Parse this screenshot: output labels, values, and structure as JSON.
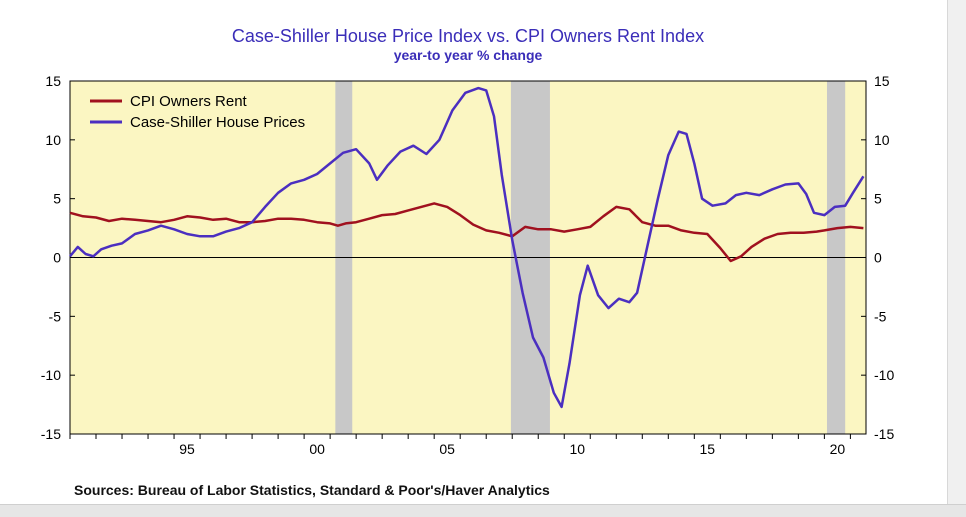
{
  "title": "Case-Shiller House Price Index vs. CPI Owners Rent Index",
  "subtitle": "year-to year % change",
  "source": "Sources:  Bureau of Labor Statistics, Standard & Poor's/Haver Analytics",
  "colors": {
    "plot_background": "#fbf6c2",
    "recession": "#c8c8c8",
    "cpi_owners_rent": "#a0111f",
    "case_shiller": "#4b2fc0"
  },
  "chart_data": {
    "type": "line",
    "xlim": [
      1991.0,
      2021.6
    ],
    "ylim": [
      -15,
      15
    ],
    "y_ticks": [
      "15",
      "10",
      "5",
      "0",
      "-5",
      "-10",
      "-15"
    ],
    "y_tick_values": [
      15,
      10,
      5,
      0,
      -5,
      -10,
      -15
    ],
    "x_ticks": [
      "95",
      "00",
      "05",
      "10",
      "15",
      "20"
    ],
    "x_tick_values": [
      1995.5,
      2000.5,
      2005.5,
      2010.5,
      2015.5,
      2020.5
    ],
    "zero_line": true,
    "legend_position": "top-left",
    "recessions": [
      [
        2001.2,
        2001.85
      ],
      [
        2007.95,
        2009.45
      ],
      [
        2020.1,
        2020.8
      ]
    ],
    "series": [
      {
        "name": "CPI Owners Rent",
        "points": [
          [
            1991.0,
            3.8
          ],
          [
            1991.5,
            3.5
          ],
          [
            1992.0,
            3.4
          ],
          [
            1992.5,
            3.1
          ],
          [
            1993.0,
            3.3
          ],
          [
            1993.5,
            3.2
          ],
          [
            1994.0,
            3.1
          ],
          [
            1994.5,
            3.0
          ],
          [
            1995.0,
            3.2
          ],
          [
            1995.5,
            3.5
          ],
          [
            1996.0,
            3.4
          ],
          [
            1996.5,
            3.2
          ],
          [
            1997.0,
            3.3
          ],
          [
            1997.5,
            3.0
          ],
          [
            1998.0,
            3.0
          ],
          [
            1998.5,
            3.1
          ],
          [
            1999.0,
            3.3
          ],
          [
            1999.5,
            3.3
          ],
          [
            2000.0,
            3.2
          ],
          [
            2000.5,
            3.0
          ],
          [
            2001.0,
            2.9
          ],
          [
            2001.3,
            2.7
          ],
          [
            2001.6,
            2.9
          ],
          [
            2002.0,
            3.0
          ],
          [
            2002.5,
            3.3
          ],
          [
            2003.0,
            3.6
          ],
          [
            2003.5,
            3.7
          ],
          [
            2004.0,
            4.0
          ],
          [
            2004.5,
            4.3
          ],
          [
            2005.0,
            4.6
          ],
          [
            2005.5,
            4.3
          ],
          [
            2006.0,
            3.6
          ],
          [
            2006.5,
            2.8
          ],
          [
            2007.0,
            2.3
          ],
          [
            2007.5,
            2.1
          ],
          [
            2008.0,
            1.8
          ],
          [
            2008.5,
            2.6
          ],
          [
            2009.0,
            2.4
          ],
          [
            2009.5,
            2.4
          ],
          [
            2010.0,
            2.2
          ],
          [
            2010.5,
            2.4
          ],
          [
            2011.0,
            2.6
          ],
          [
            2011.5,
            3.5
          ],
          [
            2012.0,
            4.3
          ],
          [
            2012.5,
            4.1
          ],
          [
            2013.0,
            3.0
          ],
          [
            2013.5,
            2.7
          ],
          [
            2014.0,
            2.7
          ],
          [
            2014.5,
            2.3
          ],
          [
            2015.0,
            2.1
          ],
          [
            2015.5,
            2.0
          ],
          [
            2016.0,
            0.8
          ],
          [
            2016.4,
            -0.3
          ],
          [
            2016.8,
            0.1
          ],
          [
            2017.2,
            0.9
          ],
          [
            2017.7,
            1.6
          ],
          [
            2018.2,
            2.0
          ],
          [
            2018.7,
            2.1
          ],
          [
            2019.2,
            2.1
          ],
          [
            2019.7,
            2.2
          ],
          [
            2020.0,
            2.3
          ],
          [
            2020.5,
            2.5
          ],
          [
            2021.0,
            2.6
          ],
          [
            2021.5,
            2.5
          ]
        ]
      },
      {
        "name": "Case-Shiller House Prices",
        "points": [
          [
            1991.0,
            0.1
          ],
          [
            1991.3,
            0.9
          ],
          [
            1991.6,
            0.3
          ],
          [
            1991.9,
            0.1
          ],
          [
            1992.2,
            0.7
          ],
          [
            1992.6,
            1.0
          ],
          [
            1993.0,
            1.2
          ],
          [
            1993.5,
            2.0
          ],
          [
            1994.0,
            2.3
          ],
          [
            1994.5,
            2.7
          ],
          [
            1995.0,
            2.4
          ],
          [
            1995.5,
            2.0
          ],
          [
            1996.0,
            1.8
          ],
          [
            1996.5,
            1.8
          ],
          [
            1997.0,
            2.2
          ],
          [
            1997.5,
            2.5
          ],
          [
            1998.0,
            3.0
          ],
          [
            1998.5,
            4.3
          ],
          [
            1999.0,
            5.5
          ],
          [
            1999.5,
            6.3
          ],
          [
            2000.0,
            6.6
          ],
          [
            2000.5,
            7.1
          ],
          [
            2001.0,
            8.0
          ],
          [
            2001.5,
            8.9
          ],
          [
            2002.0,
            9.2
          ],
          [
            2002.5,
            8.0
          ],
          [
            2002.8,
            6.6
          ],
          [
            2003.2,
            7.8
          ],
          [
            2003.7,
            9.0
          ],
          [
            2004.2,
            9.5
          ],
          [
            2004.7,
            8.8
          ],
          [
            2005.2,
            10.0
          ],
          [
            2005.7,
            12.5
          ],
          [
            2006.2,
            14.0
          ],
          [
            2006.7,
            14.4
          ],
          [
            2007.0,
            14.2
          ],
          [
            2007.3,
            12.0
          ],
          [
            2007.6,
            7.0
          ],
          [
            2008.0,
            1.5
          ],
          [
            2008.4,
            -3.0
          ],
          [
            2008.8,
            -6.8
          ],
          [
            2009.2,
            -8.5
          ],
          [
            2009.6,
            -11.5
          ],
          [
            2009.9,
            -12.7
          ],
          [
            2010.2,
            -9.0
          ],
          [
            2010.6,
            -3.2
          ],
          [
            2010.9,
            -0.7
          ],
          [
            2011.3,
            -3.2
          ],
          [
            2011.7,
            -4.3
          ],
          [
            2012.1,
            -3.5
          ],
          [
            2012.5,
            -3.8
          ],
          [
            2012.8,
            -3.0
          ],
          [
            2013.2,
            1.0
          ],
          [
            2013.6,
            5.0
          ],
          [
            2014.0,
            8.7
          ],
          [
            2014.4,
            10.7
          ],
          [
            2014.7,
            10.5
          ],
          [
            2015.0,
            8.0
          ],
          [
            2015.3,
            5.0
          ],
          [
            2015.7,
            4.4
          ],
          [
            2016.2,
            4.6
          ],
          [
            2016.6,
            5.3
          ],
          [
            2017.0,
            5.5
          ],
          [
            2017.5,
            5.3
          ],
          [
            2018.0,
            5.8
          ],
          [
            2018.5,
            6.2
          ],
          [
            2019.0,
            6.3
          ],
          [
            2019.3,
            5.4
          ],
          [
            2019.6,
            3.8
          ],
          [
            2020.0,
            3.6
          ],
          [
            2020.4,
            4.3
          ],
          [
            2020.8,
            4.4
          ],
          [
            2021.1,
            5.5
          ],
          [
            2021.5,
            6.9
          ]
        ]
      }
    ]
  }
}
